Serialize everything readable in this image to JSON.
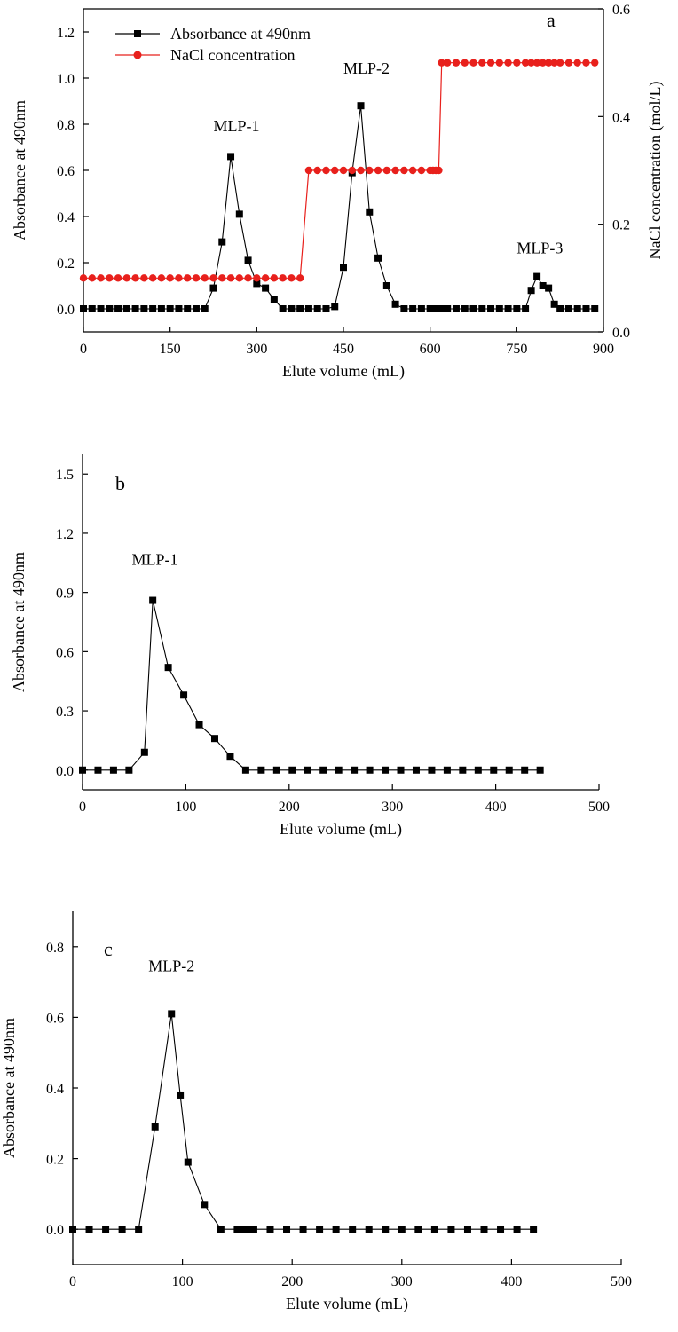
{
  "chart_data": [
    {
      "type": "line",
      "panel_label": "a",
      "xlabel": "Elute volume (mL)",
      "ylabel": "Absorbance at 490nm",
      "y2label": "NaCl concentration (mol/L)",
      "xlim": [
        0,
        900
      ],
      "ylim": [
        -0.1,
        1.3
      ],
      "y2lim": [
        0,
        0.6
      ],
      "xticks": [
        0,
        150,
        300,
        450,
        600,
        750,
        900
      ],
      "yticks": [
        0.0,
        0.2,
        0.4,
        0.6,
        0.8,
        1.0,
        1.2
      ],
      "y2ticks": [
        0.0,
        0.2,
        0.4,
        0.6
      ],
      "legend_position": "top-left",
      "colors": {
        "absorbance": "#000000",
        "nacl": "#e8201c"
      },
      "series": [
        {
          "name": "Absorbance at 490nm",
          "axis": "left",
          "style": "square-line",
          "x": [
            0,
            15,
            30,
            45,
            60,
            75,
            90,
            105,
            120,
            135,
            150,
            165,
            180,
            195,
            210,
            225,
            240,
            255,
            270,
            285,
            300,
            315,
            330,
            345,
            360,
            375,
            390,
            405,
            420,
            435,
            450,
            465,
            480,
            495,
            510,
            525,
            540,
            555,
            570,
            585,
            600,
            605,
            610,
            615,
            620,
            630,
            645,
            660,
            675,
            690,
            705,
            720,
            735,
            750,
            765,
            775,
            785,
            795,
            805,
            815,
            825,
            840,
            855,
            870,
            885
          ],
          "values": [
            0,
            0,
            0,
            0,
            0,
            0,
            0,
            0,
            0,
            0,
            0,
            0,
            0,
            0,
            0,
            0.09,
            0.29,
            0.66,
            0.41,
            0.21,
            0.11,
            0.09,
            0.04,
            0,
            0,
            0,
            0,
            0,
            0,
            0.01,
            0.18,
            0.59,
            0.88,
            0.42,
            0.22,
            0.1,
            0.02,
            0,
            0,
            0,
            0,
            0,
            0,
            0,
            0,
            0,
            0,
            0,
            0,
            0,
            0,
            0,
            0,
            0,
            0,
            0.08,
            0.14,
            0.1,
            0.09,
            0.02,
            0,
            0,
            0,
            0,
            0
          ]
        },
        {
          "name": "NaCl concentration",
          "axis": "right",
          "style": "circle-line",
          "x": [
            0,
            15,
            30,
            45,
            60,
            75,
            90,
            105,
            120,
            135,
            150,
            165,
            180,
            195,
            210,
            225,
            240,
            255,
            270,
            285,
            300,
            315,
            330,
            345,
            360,
            375,
            390,
            405,
            420,
            435,
            450,
            465,
            480,
            495,
            510,
            525,
            540,
            555,
            570,
            585,
            600,
            605,
            610,
            615,
            620,
            630,
            645,
            660,
            675,
            690,
            705,
            720,
            735,
            750,
            765,
            775,
            785,
            795,
            805,
            815,
            825,
            840,
            855,
            870,
            885
          ],
          "values": [
            0.1,
            0.1,
            0.1,
            0.1,
            0.1,
            0.1,
            0.1,
            0.1,
            0.1,
            0.1,
            0.1,
            0.1,
            0.1,
            0.1,
            0.1,
            0.1,
            0.1,
            0.1,
            0.1,
            0.1,
            0.1,
            0.1,
            0.1,
            0.1,
            0.1,
            0.1,
            0.3,
            0.3,
            0.3,
            0.3,
            0.3,
            0.3,
            0.3,
            0.3,
            0.3,
            0.3,
            0.3,
            0.3,
            0.3,
            0.3,
            0.3,
            0.3,
            0.3,
            0.3,
            0.5,
            0.5,
            0.5,
            0.5,
            0.5,
            0.5,
            0.5,
            0.5,
            0.5,
            0.5,
            0.5,
            0.5,
            0.5,
            0.5,
            0.5,
            0.5,
            0.5,
            0.5,
            0.5,
            0.5,
            0.5
          ]
        }
      ],
      "annotations": [
        {
          "text": "MLP-1",
          "x": 265,
          "y": 0.77
        },
        {
          "text": "MLP-2",
          "x": 490,
          "y": 1.02
        },
        {
          "text": "MLP-3",
          "x": 790,
          "y": 0.24
        }
      ]
    },
    {
      "type": "line",
      "panel_label": "b",
      "xlabel": "Elute volume (mL)",
      "ylabel": "Absorbance at 490nm",
      "xlim": [
        0,
        500
      ],
      "ylim": [
        -0.1,
        1.6
      ],
      "xticks": [
        0,
        100,
        200,
        300,
        400,
        500
      ],
      "yticks": [
        0.0,
        0.3,
        0.6,
        0.9,
        1.2,
        1.5
      ],
      "series": [
        {
          "name": "",
          "style": "square-line",
          "x": [
            0,
            15,
            30,
            45,
            60,
            68,
            83,
            98,
            113,
            128,
            143,
            158,
            173,
            188,
            203,
            218,
            233,
            248,
            263,
            278,
            293,
            308,
            323,
            338,
            353,
            368,
            383,
            398,
            413,
            428,
            443
          ],
          "values": [
            0,
            0,
            0,
            0,
            0.09,
            0.86,
            0.52,
            0.38,
            0.23,
            0.16,
            0.07,
            0,
            0,
            0,
            0,
            0,
            0,
            0,
            0,
            0,
            0,
            0,
            0,
            0,
            0,
            0,
            0,
            0,
            0,
            0,
            0
          ]
        }
      ],
      "annotations": [
        {
          "text": "MLP-1",
          "x": 70,
          "y": 1.04
        }
      ]
    },
    {
      "type": "line",
      "panel_label": "c",
      "xlabel": "Elute volume (mL)",
      "ylabel": "Absorbance at 490nm",
      "xlim": [
        0,
        500
      ],
      "ylim": [
        -0.1,
        0.9
      ],
      "xticks": [
        0,
        100,
        200,
        300,
        400,
        500
      ],
      "yticks": [
        0.0,
        0.2,
        0.4,
        0.6,
        0.8
      ],
      "series": [
        {
          "name": "",
          "style": "square-line",
          "x": [
            0,
            15,
            30,
            45,
            60,
            75,
            90,
            98,
            105,
            120,
            135,
            150,
            155,
            160,
            165,
            180,
            195,
            210,
            225,
            240,
            255,
            270,
            285,
            300,
            315,
            330,
            345,
            360,
            375,
            390,
            405,
            420
          ],
          "values": [
            0,
            0,
            0,
            0,
            0,
            0.29,
            0.61,
            0.38,
            0.19,
            0.07,
            0,
            0,
            0,
            0,
            0,
            0,
            0,
            0,
            0,
            0,
            0,
            0,
            0,
            0,
            0,
            0,
            0,
            0,
            0,
            0,
            0,
            0
          ]
        }
      ],
      "annotations": [
        {
          "text": "MLP-2",
          "x": 90,
          "y": 0.73
        }
      ]
    }
  ]
}
